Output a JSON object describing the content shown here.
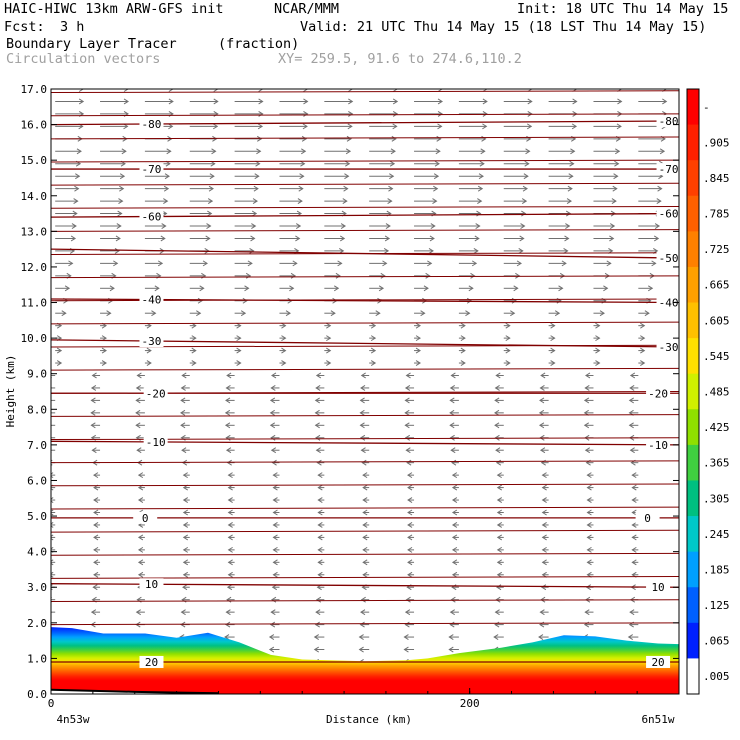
{
  "header": {
    "model": "HAIC-HIWC 13km ARW-GFS init",
    "org": "NCAR/MMM",
    "init": "Init: 18 UTC Thu 14 May 15",
    "fcst_label": "Fcst:",
    "fcst_value": "3 h",
    "valid": "Valid: 21 UTC Thu 14 May 15 (18 LST Thu 14 May 15)",
    "field": "Boundary Layer Tracer",
    "units": "(fraction)",
    "field2": "Circulation vectors",
    "xy": "XY= 259.5, 91.6 to 274.6,110.2"
  },
  "chart_data": {
    "type": "cross-section",
    "xlabel": "Distance (km)",
    "ylabel": "Height (km)",
    "xlim": [
      0,
      300
    ],
    "ylim": [
      0,
      17
    ],
    "x_ticks": [
      {
        "value": 0,
        "label": "0"
      },
      {
        "value": 200,
        "label": "200"
      }
    ],
    "x_endpoint_labels": {
      "left": "4n53w",
      "right": "6n51w"
    },
    "y_ticks": [
      "0.0",
      "1.0",
      "2.0",
      "3.0",
      "4.0",
      "5.0",
      "6.0",
      "7.0",
      "8.0",
      "9.0",
      "10.0",
      "11.0",
      "12.0",
      "13.0",
      "14.0",
      "15.0",
      "16.0",
      "17.0"
    ],
    "tracer_top_km": [
      {
        "x": 0,
        "z": 1.88
      },
      {
        "x": 10,
        "z": 1.85
      },
      {
        "x": 25,
        "z": 1.7
      },
      {
        "x": 45,
        "z": 1.7
      },
      {
        "x": 60,
        "z": 1.58
      },
      {
        "x": 75,
        "z": 1.72
      },
      {
        "x": 90,
        "z": 1.45
      },
      {
        "x": 105,
        "z": 1.1
      },
      {
        "x": 120,
        "z": 0.97
      },
      {
        "x": 150,
        "z": 0.92
      },
      {
        "x": 170,
        "z": 0.95
      },
      {
        "x": 180,
        "z": 1.0
      },
      {
        "x": 195,
        "z": 1.15
      },
      {
        "x": 215,
        "z": 1.3
      },
      {
        "x": 230,
        "z": 1.45
      },
      {
        "x": 245,
        "z": 1.65
      },
      {
        "x": 260,
        "z": 1.62
      },
      {
        "x": 275,
        "z": 1.5
      },
      {
        "x": 290,
        "z": 1.42
      },
      {
        "x": 300,
        "z": 1.4
      }
    ],
    "isotherm_labels": [
      "-80",
      "-70",
      "-60",
      "-50",
      "-40",
      "-30",
      "-20",
      "-10",
      "0",
      "10",
      "20"
    ],
    "isotherms": [
      {
        "label": "-80",
        "z_left": 16.0,
        "z_right": 16.1,
        "label_x": [
          48,
          295
        ]
      },
      {
        "label": "-70",
        "z_left": 14.75,
        "z_right": 14.75,
        "label_x": [
          48,
          295
        ]
      },
      {
        "label": "-60",
        "z_left": 13.4,
        "z_right": 13.5,
        "label_x": [
          48,
          295
        ]
      },
      {
        "label": "-50",
        "z_left": 12.5,
        "z_right": 12.25,
        "label_x": [
          295
        ]
      },
      {
        "label": "-40",
        "z_left": 11.1,
        "z_right": 11.0,
        "label_x": [
          48,
          295
        ]
      },
      {
        "label": "-30",
        "z_left": 9.95,
        "z_right": 9.75,
        "label_x": [
          48,
          295
        ]
      },
      {
        "label": "-20",
        "z_left": 8.45,
        "z_right": 8.45,
        "label_x": [
          50,
          290
        ]
      },
      {
        "label": "-10",
        "z_left": 7.1,
        "z_right": 7.0,
        "label_x": [
          50,
          290
        ]
      },
      {
        "label": "0",
        "z_left": 4.95,
        "z_right": 4.95,
        "label_x": [
          45,
          285
        ]
      },
      {
        "label": "10",
        "z_left": 3.1,
        "z_right": 3.0,
        "label_x": [
          48,
          290
        ]
      },
      {
        "label": "20",
        "z_left": 0.9,
        "z_right": 0.9,
        "label_x": [
          48,
          290
        ]
      }
    ],
    "colorbar": {
      "labels": [
        "-",
        ".905",
        ".845",
        ".785",
        ".725",
        ".665",
        ".605",
        ".545",
        ".485",
        ".425",
        ".365",
        ".305",
        ".245",
        ".185",
        ".125",
        ".065",
        ".005"
      ],
      "colors": [
        "#ff0000",
        "#ff2000",
        "#ff4000",
        "#ff6000",
        "#ff8000",
        "#ffa000",
        "#ffc000",
        "#ffe000",
        "#d0f000",
        "#90e000",
        "#40d040",
        "#00c080",
        "#00c8c8",
        "#00a0ff",
        "#0060ff",
        "#0020ff",
        "#ffffff"
      ]
    }
  }
}
